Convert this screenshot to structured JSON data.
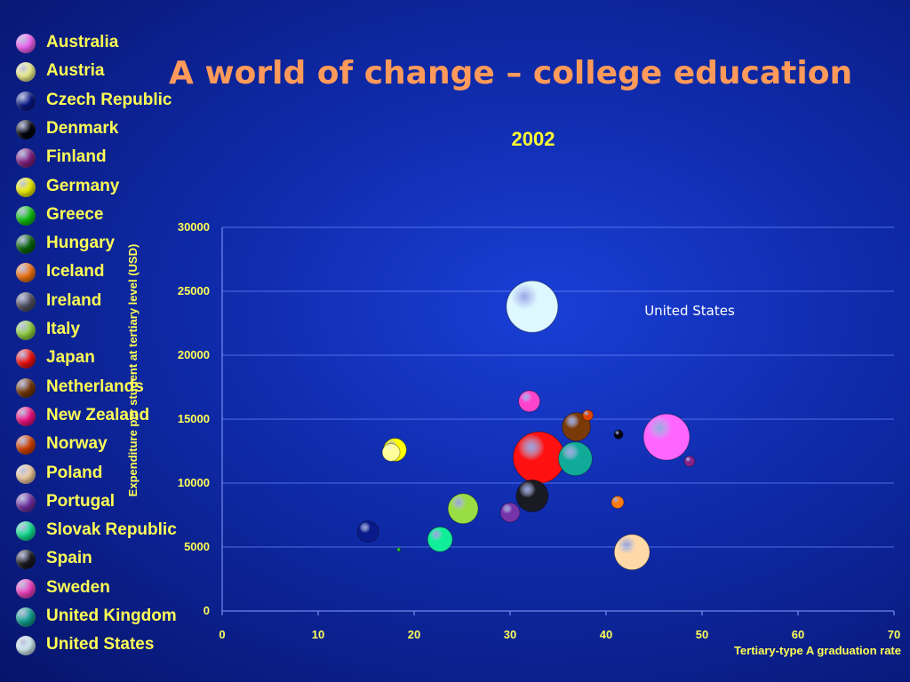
{
  "slide": {
    "title": "A world of change – college education",
    "subtitle": "2002"
  },
  "chart_data": {
    "type": "scatter",
    "subtype": "bubble",
    "title": "2002",
    "xlabel": "Tertiary-type A graduation rate",
    "ylabel": "Expenditure per student at tertiary level (USD)",
    "xlim": [
      0,
      70
    ],
    "ylim": [
      0,
      30000
    ],
    "x_ticks": [
      0,
      10,
      20,
      30,
      40,
      50,
      60,
      70
    ],
    "y_ticks": [
      0,
      5000,
      10000,
      15000,
      20000,
      25000,
      30000
    ],
    "grid": "horizontal",
    "legend_position": "left",
    "annotations": [
      {
        "text": "United States",
        "x": 44,
        "y": 23000
      }
    ],
    "series": [
      {
        "name": "Australia",
        "color": "#ff66ff",
        "x": 46.3,
        "y": 13600,
        "size": 26
      },
      {
        "name": "Austria",
        "color": "#ffff99",
        "x": 17.6,
        "y": 12400,
        "size": 10
      },
      {
        "name": "Czech Republic",
        "color": "#0a1a8a",
        "x": 15.2,
        "y": 6200,
        "size": 12
      },
      {
        "name": "Denmark",
        "color": "#050510",
        "x": 41.3,
        "y": 13800,
        "size": 5
      },
      {
        "name": "Finland",
        "color": "#882288",
        "x": 48.7,
        "y": 11700,
        "size": 6
      },
      {
        "name": "Germany",
        "color": "#ffff00",
        "x": 18.0,
        "y": 12600,
        "size": 13
      },
      {
        "name": "Greece",
        "color": "#11cc11",
        "x": 18.4,
        "y": 4800,
        "size": 2
      },
      {
        "name": "Hungary",
        "color": "#0a6a0a",
        "x": 0,
        "y": 0,
        "size": 0
      },
      {
        "name": "Iceland",
        "color": "#ff7a11",
        "x": 41.2,
        "y": 8500,
        "size": 7
      },
      {
        "name": "Ireland",
        "color": "#555566",
        "x": 0,
        "y": 0,
        "size": 0
      },
      {
        "name": "Italy",
        "color": "#99dd44",
        "x": 25.1,
        "y": 8000,
        "size": 17
      },
      {
        "name": "Japan",
        "color": "#ff1111",
        "x": 33.0,
        "y": 12000,
        "size": 29
      },
      {
        "name": "Netherlands",
        "color": "#7a3a08",
        "x": 36.9,
        "y": 14400,
        "size": 16
      },
      {
        "name": "New Zealand",
        "color": "#ff1188",
        "x": 0,
        "y": 0,
        "size": 0
      },
      {
        "name": "Norway",
        "color": "#dd4400",
        "x": 38.1,
        "y": 15300,
        "size": 6
      },
      {
        "name": "Poland",
        "color": "#ffd9a8",
        "x": 42.7,
        "y": 4600,
        "size": 20
      },
      {
        "name": "Portugal",
        "color": "#7733aa",
        "x": 30.0,
        "y": 7700,
        "size": 11
      },
      {
        "name": "Slovak Republic",
        "color": "#11ee99",
        "x": 22.7,
        "y": 5600,
        "size": 14
      },
      {
        "name": "Spain",
        "color": "#1a1a22",
        "x": 32.3,
        "y": 9000,
        "size": 18
      },
      {
        "name": "Sweden",
        "color": "#ff44cc",
        "x": 32.0,
        "y": 16400,
        "size": 12
      },
      {
        "name": "United Kingdom",
        "color": "#11aa99",
        "x": 36.8,
        "y": 11900,
        "size": 19
      },
      {
        "name": "United States",
        "color": "#ddf8ff",
        "x": 32.3,
        "y": 23800,
        "size": 29
      }
    ]
  }
}
